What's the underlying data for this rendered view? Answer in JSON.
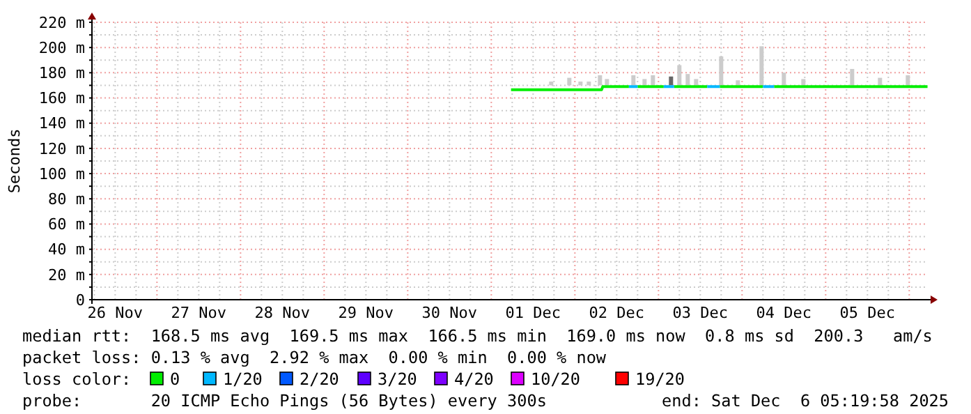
{
  "chart_data": {
    "type": "line",
    "ylabel": "Seconds",
    "xlim": [
      "2025-11-26T05:20",
      "2025-12-06T05:20"
    ],
    "xticks": [
      {
        "value": "2025-11-26T06:00",
        "label": null
      },
      {
        "value": "2025-11-26T12:00",
        "label": "26 Nov"
      },
      {
        "value": "2025-11-26T18:00",
        "label": null
      },
      {
        "value": "2025-11-27T00:00",
        "label": null
      },
      {
        "value": "2025-11-27T06:00",
        "label": null
      },
      {
        "value": "2025-11-27T12:00",
        "label": "27 Nov"
      },
      {
        "value": "2025-11-27T18:00",
        "label": null
      },
      {
        "value": "2025-11-28T00:00",
        "label": null
      },
      {
        "value": "2025-11-28T06:00",
        "label": null
      },
      {
        "value": "2025-11-28T12:00",
        "label": "28 Nov"
      },
      {
        "value": "2025-11-28T18:00",
        "label": null
      },
      {
        "value": "2025-11-29T00:00",
        "label": null
      },
      {
        "value": "2025-11-29T06:00",
        "label": null
      },
      {
        "value": "2025-11-29T12:00",
        "label": "29 Nov"
      },
      {
        "value": "2025-11-29T18:00",
        "label": null
      },
      {
        "value": "2025-11-30T00:00",
        "label": null
      },
      {
        "value": "2025-11-30T06:00",
        "label": null
      },
      {
        "value": "2025-11-30T12:00",
        "label": "30 Nov"
      },
      {
        "value": "2025-11-30T18:00",
        "label": null
      },
      {
        "value": "2025-12-01T00:00",
        "label": null
      },
      {
        "value": "2025-12-01T06:00",
        "label": null
      },
      {
        "value": "2025-12-01T12:00",
        "label": "01 Dec"
      },
      {
        "value": "2025-12-01T18:00",
        "label": null
      },
      {
        "value": "2025-12-02T00:00",
        "label": null
      },
      {
        "value": "2025-12-02T06:00",
        "label": null
      },
      {
        "value": "2025-12-02T12:00",
        "label": "02 Dec"
      },
      {
        "value": "2025-12-02T18:00",
        "label": null
      },
      {
        "value": "2025-12-03T00:00",
        "label": null
      },
      {
        "value": "2025-12-03T06:00",
        "label": null
      },
      {
        "value": "2025-12-03T12:00",
        "label": "03 Dec"
      },
      {
        "value": "2025-12-03T18:00",
        "label": null
      },
      {
        "value": "2025-12-04T00:00",
        "label": null
      },
      {
        "value": "2025-12-04T06:00",
        "label": null
      },
      {
        "value": "2025-12-04T12:00",
        "label": "04 Dec"
      },
      {
        "value": "2025-12-04T18:00",
        "label": null
      },
      {
        "value": "2025-12-05T00:00",
        "label": null
      },
      {
        "value": "2025-12-05T06:00",
        "label": null
      },
      {
        "value": "2025-12-05T12:00",
        "label": "05 Dec"
      },
      {
        "value": "2025-12-05T18:00",
        "label": null
      },
      {
        "value": "2025-12-06T00:00",
        "label": null
      }
    ],
    "ylim": [
      0,
      220
    ],
    "yticks": [
      {
        "value": 0,
        "label": "0"
      },
      {
        "value": 10,
        "label": null
      },
      {
        "value": 20,
        "label": "20 m"
      },
      {
        "value": 30,
        "label": null
      },
      {
        "value": 40,
        "label": "40 m"
      },
      {
        "value": 50,
        "label": null
      },
      {
        "value": 60,
        "label": "60 m"
      },
      {
        "value": 70,
        "label": null
      },
      {
        "value": 80,
        "label": "80 m"
      },
      {
        "value": 90,
        "label": null
      },
      {
        "value": 100,
        "label": "100 m"
      },
      {
        "value": 110,
        "label": null
      },
      {
        "value": 120,
        "label": "120 m"
      },
      {
        "value": 130,
        "label": null
      },
      {
        "value": 140,
        "label": "140 m"
      },
      {
        "value": 150,
        "label": null
      },
      {
        "value": 160,
        "label": "160 m"
      },
      {
        "value": 170,
        "label": null
      },
      {
        "value": 180,
        "label": "180 m"
      },
      {
        "value": 190,
        "label": null
      },
      {
        "value": 200,
        "label": "200 m"
      },
      {
        "value": 210,
        "label": null
      },
      {
        "value": 220,
        "label": "220 m"
      }
    ],
    "grid": true,
    "legend": "bottom",
    "legend_title": "loss color:",
    "series": [
      {
        "type": "bar",
        "colors": [
          "#cccccc",
          "#cccccc",
          "#cccccc",
          "#cccccc",
          "#cccccc",
          "#cccccc",
          "#cccccc",
          "#cccccc",
          "#cccccc",
          "#666666",
          "#cccccc",
          "#cccccc",
          "#cccccc",
          "#cccccc",
          "#cccccc",
          "#cccccc",
          "#cccccc",
          "#cccccc",
          "#cccccc",
          "#cccccc",
          "#cccccc"
        ],
        "x": [
          "2025-12-01T17:12",
          "2025-12-01T22:24",
          "2025-12-02T01:36",
          "2025-12-02T04:00",
          "2025-12-02T07:12",
          "2025-12-02T09:12",
          "2025-12-02T16:48",
          "2025-12-02T20:00",
          "2025-12-02T22:24",
          "2025-12-03T03:36",
          "2025-12-03T06:00",
          "2025-12-03T08:24",
          "2025-12-03T10:48",
          "2025-12-03T18:00",
          "2025-12-03T22:48",
          "2025-12-04T05:36",
          "2025-12-04T12:00",
          "2025-12-04T17:36",
          "2025-12-05T07:36",
          "2025-12-05T15:36",
          "2025-12-05T23:36"
        ],
        "base": [
          170,
          170,
          170,
          170,
          170,
          170,
          170,
          170,
          170,
          170,
          170,
          170,
          170,
          170,
          170,
          170,
          170,
          170,
          170,
          170,
          170
        ],
        "values": [
          3,
          6,
          3,
          3,
          8,
          5,
          8,
          5,
          8,
          7,
          16,
          9,
          5,
          23,
          4,
          31,
          10,
          5,
          13,
          6,
          8
        ]
      },
      {
        "name": "0",
        "color": "#00ee00",
        "x": [
          "2025-12-01T05:40",
          "2025-12-02T07:40",
          "2025-12-02T08:00",
          "2025-12-02T15:30",
          "2025-12-02T16:48",
          "2025-12-02T18:00",
          "2025-12-03T01:30",
          "2025-12-03T03:00",
          "2025-12-03T04:30",
          "2025-12-03T14:00",
          "2025-12-03T16:00",
          "2025-12-03T17:36",
          "2025-12-04T06:00",
          "2025-12-04T07:30",
          "2025-12-04T09:12",
          "2025-12-06T05:15"
        ],
        "values": [
          166.5,
          166.5,
          169,
          169,
          null,
          169,
          169,
          null,
          169,
          169,
          null,
          169,
          169,
          null,
          169,
          169
        ]
      },
      {
        "name": "1/20",
        "color": "#00b8ff",
        "x": [
          "2025-12-02T15:30",
          "2025-12-02T18:00",
          "2025-12-02T20:00",
          "2025-12-03T01:30",
          "2025-12-03T04:30",
          "2025-12-03T10:00",
          "2025-12-03T14:00",
          "2025-12-03T17:36",
          "2025-12-04T00:00",
          "2025-12-04T06:00",
          "2025-12-04T09:12"
        ],
        "values": [
          169,
          169,
          null,
          169,
          169,
          null,
          169,
          169,
          null,
          169,
          169
        ]
      },
      {
        "name": "2/20",
        "color": "#0059ff"
      },
      {
        "name": "3/20",
        "color": "#5e00ff"
      },
      {
        "name": "4/20",
        "color": "#7e00ff"
      },
      {
        "name": "10/20",
        "color": "#dd00ff"
      },
      {
        "name": "19/20",
        "color": "#ff0000"
      }
    ],
    "annotations": [
      "median rtt:  168.5 ms avg  169.5 ms max  166.5 ms min  169.0 ms now  0.8 ms sd  200.3   am/s",
      "packet loss: 0.13 % avg  2.92 % max  0.00 % min  0.00 % now",
      "probe:       20 ICMP Echo Pings (56 Bytes) every 300s",
      "end: Sat Dec  6 05:19:58 2025"
    ]
  }
}
